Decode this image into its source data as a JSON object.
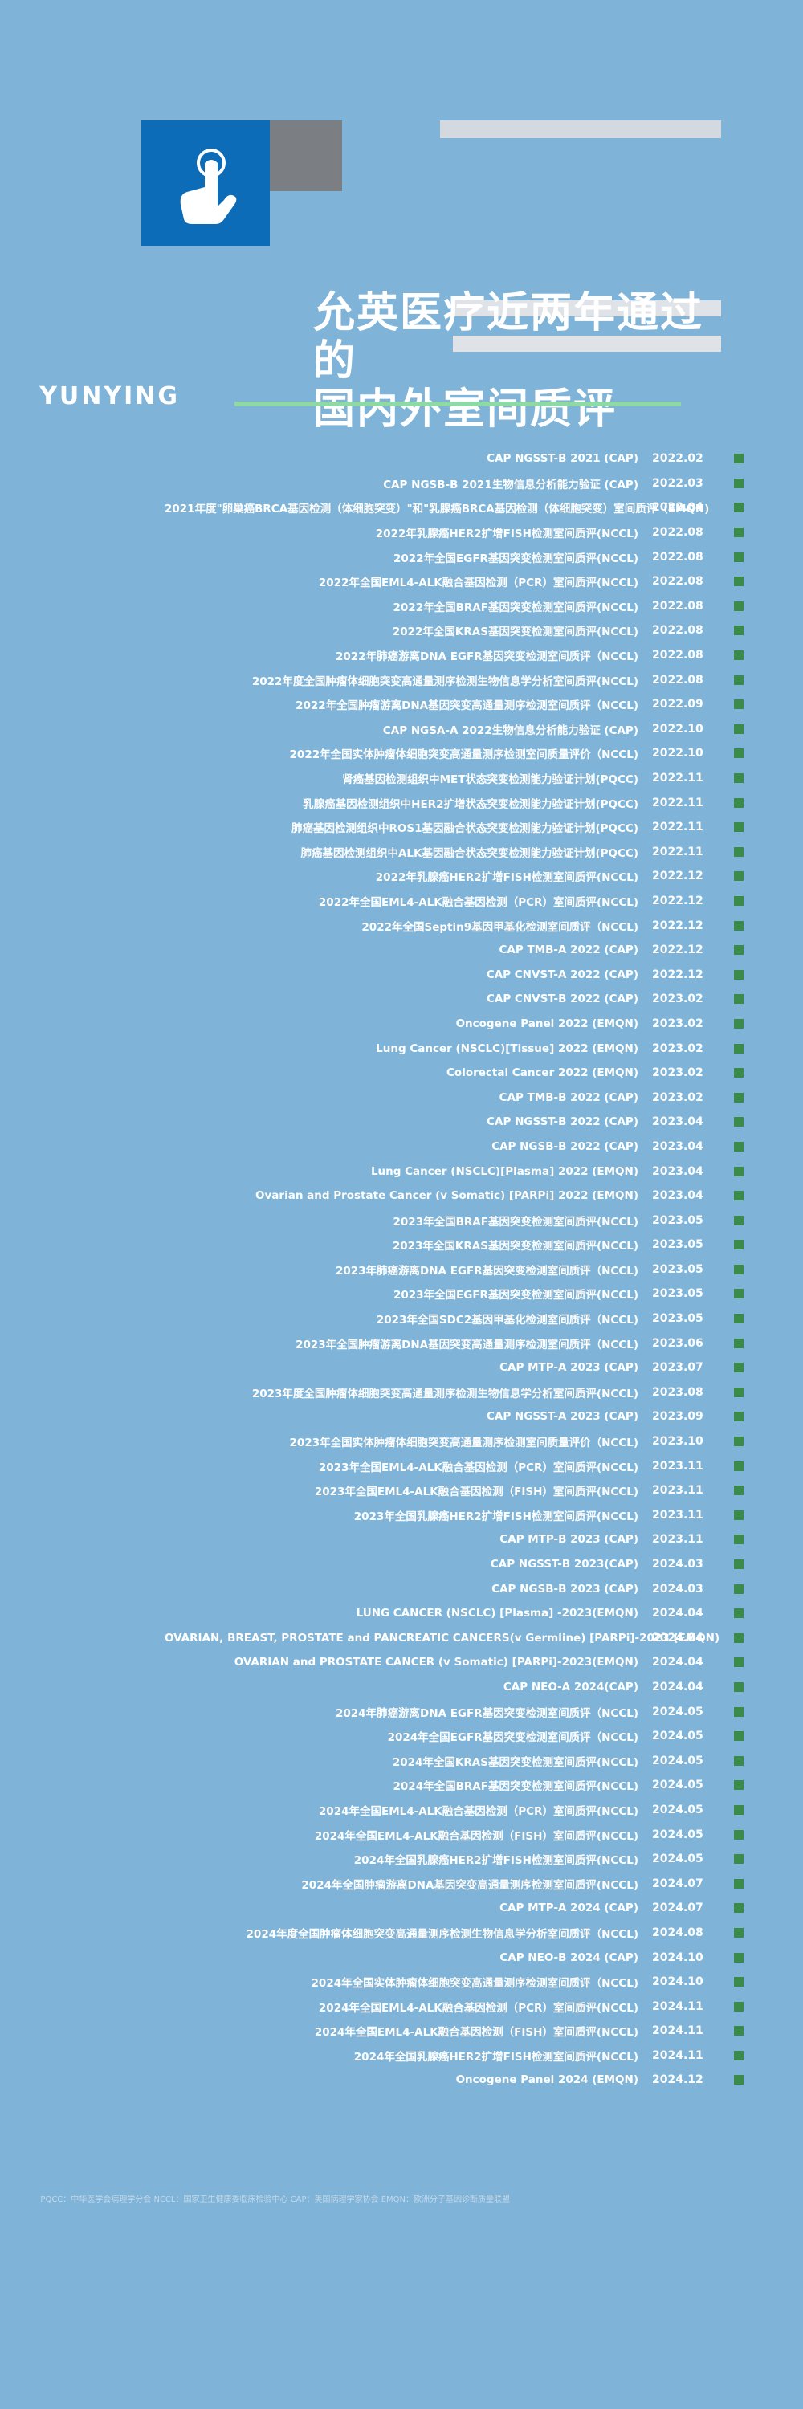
{
  "title": {
    "line1": "允英医疗近两年通过的",
    "line2": "国内外室间质评"
  },
  "brand": "YUNYING",
  "entries": [
    {
      "date": "2022.02",
      "name": "CAP NGSST-B 2021 (CAP)"
    },
    {
      "date": "2022.03",
      "name": "CAP NGSB-B 2021生物信息分析能力验证 (CAP)"
    },
    {
      "date": "2022.04",
      "name": "2021年度\"卵巢癌BRCA基因检测（体细胞突变）\"和\"乳腺癌BRCA基因检测（体细胞突变）室间质评（EMQN)"
    },
    {
      "date": "2022.08",
      "name": "2022年乳腺癌HER2扩增FISH检测室间质评(NCCL)"
    },
    {
      "date": "2022.08",
      "name": "2022年全国EGFR基因突变检测室间质评(NCCL)"
    },
    {
      "date": "2022.08",
      "name": "2022年全国EML4-ALK融合基因检测（PCR）室间质评(NCCL)"
    },
    {
      "date": "2022.08",
      "name": "2022年全国BRAF基因突变检测室间质评(NCCL)"
    },
    {
      "date": "2022.08",
      "name": "2022年全国KRAS基因突变检测室间质评(NCCL)"
    },
    {
      "date": "2022.08",
      "name": "2022年肺癌游离DNA EGFR基因突变检测室间质评（NCCL)"
    },
    {
      "date": "2022.08",
      "name": "2022年度全国肿瘤体细胞突变高通量测序检测生物信息学分析室间质评(NCCL)"
    },
    {
      "date": "2022.09",
      "name": "2022年全国肿瘤游离DNA基因突变高通量测序检测室间质评（NCCL)"
    },
    {
      "date": "2022.10",
      "name": "CAP NGSA-A 2022生物信息分析能力验证 (CAP)"
    },
    {
      "date": "2022.10",
      "name": "2022年全国实体肿瘤体细胞突变高通量测序检测室间质量评价（NCCL)"
    },
    {
      "date": "2022.11",
      "name": "肾癌基因检测组织中MET状态突变检测能力验证计划(PQCC)"
    },
    {
      "date": "2022.11",
      "name": "乳腺癌基因检测组织中HER2扩增状态突变检测能力验证计划(PQCC)"
    },
    {
      "date": "2022.11",
      "name": "肺癌基因检测组织中ROS1基因融合状态突变检测能力验证计划(PQCC)"
    },
    {
      "date": "2022.11",
      "name": "肺癌基因检测组织中ALK基因融合状态突变检测能力验证计划(PQCC)"
    },
    {
      "date": "2022.12",
      "name": "2022年乳腺癌HER2扩增FISH检测室间质评(NCCL)"
    },
    {
      "date": "2022.12",
      "name": "2022年全国EML4-ALK融合基因检测（PCR）室间质评(NCCL)"
    },
    {
      "date": "2022.12",
      "name": "2022年全国Septin9基因甲基化检测室间质评（NCCL)"
    },
    {
      "date": "2022.12",
      "name": "CAP TMB-A 2022 (CAP)"
    },
    {
      "date": "2022.12",
      "name": "CAP CNVST-A 2022 (CAP)"
    },
    {
      "date": "2023.02",
      "name": "CAP CNVST-B 2022 (CAP)"
    },
    {
      "date": "2023.02",
      "name": "Oncogene Panel 2022 (EMQN)"
    },
    {
      "date": "2023.02",
      "name": "Lung Cancer (NSCLC)[Tissue] 2022 (EMQN)"
    },
    {
      "date": "2023.02",
      "name": "Colorectal Cancer 2022 (EMQN)"
    },
    {
      "date": "2023.02",
      "name": "CAP TMB-B 2022 (CAP)"
    },
    {
      "date": "2023.04",
      "name": "CAP NGSST-B 2022 (CAP)"
    },
    {
      "date": "2023.04",
      "name": "CAP NGSB-B 2022 (CAP)"
    },
    {
      "date": "2023.04",
      "name": "Lung Cancer (NSCLC)[Plasma] 2022 (EMQN)"
    },
    {
      "date": "2023.04",
      "name": "Ovarian and Prostate Cancer (v Somatic) [PARPi] 2022 (EMQN)"
    },
    {
      "date": "2023.05",
      "name": "2023年全国BRAF基因突变检测室间质评(NCCL)"
    },
    {
      "date": "2023.05",
      "name": "2023年全国KRAS基因突变检测室间质评(NCCL)"
    },
    {
      "date": "2023.05",
      "name": "2023年肺癌游离DNA EGFR基因突变检测室间质评（NCCL)"
    },
    {
      "date": "2023.05",
      "name": "2023年全国EGFR基因突变检测室间质评(NCCL)"
    },
    {
      "date": "2023.05",
      "name": "2023年全国SDC2基因甲基化检测室间质评（NCCL)"
    },
    {
      "date": "2023.06",
      "name": "2023年全国肿瘤游离DNA基因突变高通量测序检测室间质评（NCCL)"
    },
    {
      "date": "2023.07",
      "name": "CAP MTP-A 2023 (CAP)"
    },
    {
      "date": "2023.08",
      "name": "2023年度全国肿瘤体细胞突变高通量测序检测生物信息学分析室间质评(NCCL)"
    },
    {
      "date": "2023.09",
      "name": "CAP NGSST-A 2023 (CAP)"
    },
    {
      "date": "2023.10",
      "name": "2023年全国实体肿瘤体细胞突变高通量测序检测室间质量评价（NCCL)"
    },
    {
      "date": "2023.11",
      "name": "2023年全国EML4-ALK融合基因检测（PCR）室间质评(NCCL)"
    },
    {
      "date": "2023.11",
      "name": "2023年全国EML4-ALK融合基因检测（FISH）室间质评(NCCL)"
    },
    {
      "date": "2023.11",
      "name": "2023年全国乳腺癌HER2扩增FISH检测室间质评(NCCL)"
    },
    {
      "date": "2023.11",
      "name": "CAP MTP-B 2023 (CAP)"
    },
    {
      "date": "2024.03",
      "name": "CAP NGSST-B 2023(CAP)"
    },
    {
      "date": "2024.03",
      "name": "CAP NGSB-B 2023 (CAP)"
    },
    {
      "date": "2024.04",
      "name": "LUNG CANCER (NSCLC) [Plasma] -2023(EMQN)"
    },
    {
      "date": "2024.04",
      "name": "OVARIAN, BREAST, PROSTATE and PANCREATIC CANCERS(v Germline) [PARPi]-2023 (EMQN)"
    },
    {
      "date": "2024.04",
      "name": "OVARIAN and PROSTATE CANCER (v Somatic) [PARPi]-2023(EMQN)"
    },
    {
      "date": "2024.04",
      "name": "CAP NEO-A 2024(CAP)"
    },
    {
      "date": "2024.05",
      "name": "2024年肺癌游离DNA EGFR基因突变检测室间质评（NCCL)"
    },
    {
      "date": "2024.05",
      "name": "2024年全国EGFR基因突变检测室间质评（NCCL)"
    },
    {
      "date": "2024.05",
      "name": "2024年全国KRAS基因突变检测室间质评(NCCL)"
    },
    {
      "date": "2024.05",
      "name": "2024年全国BRAF基因突变检测室间质评(NCCL)"
    },
    {
      "date": "2024.05",
      "name": "2024年全国EML4-ALK融合基因检测（PCR）室间质评(NCCL)"
    },
    {
      "date": "2024.05",
      "name": "2024年全国EML4-ALK融合基因检测（FISH）室间质评(NCCL)"
    },
    {
      "date": "2024.05",
      "name": "2024年全国乳腺癌HER2扩增FISH检测室间质评(NCCL)"
    },
    {
      "date": "2024.07",
      "name": "2024年全国肿瘤游离DNA基因突变高通量测序检测室间质评(NCCL)"
    },
    {
      "date": "2024.07",
      "name": "CAP MTP-A 2024 (CAP)"
    },
    {
      "date": "2024.08",
      "name": "2024年度全国肿瘤体细胞突变高通量测序检测生物信息学分析室间质评（NCCL)"
    },
    {
      "date": "2024.10",
      "name": "CAP NEO-B 2024 (CAP)"
    },
    {
      "date": "2024.10",
      "name": "2024年全国实体肿瘤体细胞突变高通量测序检测室间质评（NCCL)"
    },
    {
      "date": "2024.11",
      "name": "2024年全国EML4-ALK融合基因检测（PCR）室间质评(NCCL)"
    },
    {
      "date": "2024.11",
      "name": "2024年全国EML4-ALK融合基因检测（FISH）室间质评(NCCL)"
    },
    {
      "date": "2024.11",
      "name": "2024年全国乳腺癌HER2扩增FISH检测室间质评(NCCL)"
    },
    {
      "date": "2024.12",
      "name": "Oncogene Panel 2024 (EMQN)"
    }
  ],
  "footer": "PQCC：中华医学会病理学分会    NCCL：国家卫生健康委临床检验中心    CAP：美国病理学家协会    EMQN：欧洲分子基因诊断质量联盟",
  "colors": {
    "background": "#7fb4d8",
    "accent": "#0d6cb8",
    "bullet": "#3a8a4a",
    "line": "#8ed9a6"
  },
  "icons": {
    "hero": "tap-hand-icon"
  }
}
